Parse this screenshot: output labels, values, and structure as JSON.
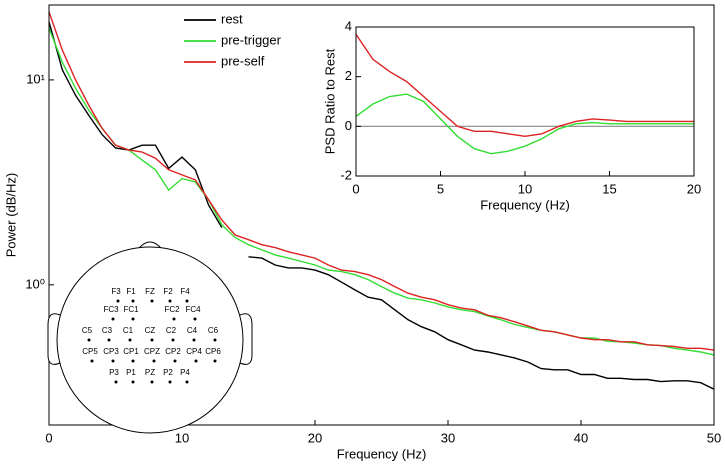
{
  "chart_data": [
    {
      "type": "line",
      "xlabel": "Frequency (Hz)",
      "ylabel": "Power (dB/Hz)",
      "log_y": true,
      "legend": "top-left",
      "x": [
        0,
        1,
        2,
        3,
        4,
        5,
        6,
        7,
        8,
        9,
        10,
        11,
        12,
        13,
        14,
        15,
        16,
        17,
        18,
        19,
        20,
        21,
        22,
        23,
        24,
        25,
        26,
        27,
        28,
        29,
        30,
        31,
        32,
        33,
        34,
        35,
        36,
        37,
        38,
        39,
        40,
        41,
        42,
        43,
        44,
        45,
        46,
        47,
        48,
        49,
        50
      ],
      "xlim": [
        0,
        50
      ],
      "xticks": [
        0,
        10,
        20,
        30,
        40,
        50
      ],
      "ylim": [
        0.207,
        23.2
      ],
      "yticks": [
        {
          "value": 1,
          "label": "10⁰"
        },
        {
          "value": 10,
          "label": "10¹"
        }
      ],
      "series": [
        {
          "name": "rest",
          "color": "#000000",
          "values": [
            19.2,
            11.2,
            8.4,
            6.7,
            5.4,
            4.65,
            4.55,
            4.8,
            4.8,
            3.7,
            4.2,
            3.64,
            2.45,
            1.9,
            null,
            1.37,
            1.35,
            1.25,
            1.21,
            1.21,
            1.18,
            1.12,
            1.03,
            0.945,
            0.87,
            0.845,
            0.755,
            0.675,
            0.625,
            0.59,
            0.54,
            0.51,
            0.48,
            0.47,
            0.455,
            0.44,
            0.42,
            0.39,
            0.385,
            0.385,
            0.365,
            0.365,
            0.35,
            0.35,
            0.345,
            0.345,
            0.337,
            0.34,
            0.34,
            0.333,
            0.31
          ]
        },
        {
          "name": "pre-trigger",
          "color": "#33dd33",
          "values": [
            17.9,
            12.2,
            9.1,
            7.1,
            5.8,
            4.8,
            4.55,
            4.06,
            3.64,
            2.9,
            3.3,
            3.18,
            2.6,
            1.96,
            1.7,
            1.57,
            1.48,
            1.4,
            1.35,
            1.3,
            1.25,
            1.18,
            1.16,
            1.12,
            1.06,
            0.98,
            0.91,
            0.86,
            0.845,
            0.815,
            0.78,
            0.755,
            0.74,
            0.705,
            0.675,
            0.64,
            0.62,
            0.6,
            0.59,
            0.57,
            0.55,
            0.55,
            0.53,
            0.527,
            0.52,
            0.51,
            0.505,
            0.49,
            0.48,
            0.47,
            0.455
          ]
        },
        {
          "name": "pre-self",
          "color": "#dd2222",
          "values": [
            21.5,
            14,
            10,
            7.5,
            5.8,
            4.8,
            4.55,
            4.45,
            4.15,
            3.64,
            3.44,
            3.25,
            2.6,
            2.07,
            1.75,
            1.66,
            1.57,
            1.52,
            1.45,
            1.4,
            1.35,
            1.25,
            1.18,
            1.16,
            1.12,
            1.06,
            0.98,
            0.91,
            0.87,
            0.845,
            0.8,
            0.77,
            0.755,
            0.71,
            0.69,
            0.66,
            0.63,
            0.6,
            0.59,
            0.57,
            0.55,
            0.54,
            0.54,
            0.527,
            0.527,
            0.51,
            0.505,
            0.5,
            0.49,
            0.49,
            0.48
          ]
        }
      ]
    },
    {
      "type": "line",
      "xlabel": "Frequency (Hz)",
      "ylabel": "PSD Ratio to Rest",
      "reference_line": 0,
      "x": [
        0,
        1,
        2,
        3,
        4,
        5,
        6,
        7,
        8,
        9,
        10,
        11,
        12,
        13,
        14,
        15,
        16,
        17,
        18,
        19,
        20
      ],
      "xlim": [
        0,
        20
      ],
      "xticks": [
        0,
        5,
        10,
        15,
        20
      ],
      "ylim": [
        -2,
        4
      ],
      "yticks": [
        -2,
        0,
        2,
        4
      ],
      "series": [
        {
          "color": "#33dd33",
          "values": [
            0.4,
            0.9,
            1.2,
            1.3,
            1.0,
            0.3,
            -0.4,
            -0.9,
            -1.1,
            -1.0,
            -0.8,
            -0.5,
            -0.1,
            0.1,
            0.15,
            0.1,
            0.1,
            0.1,
            0.1,
            0.1,
            0.1
          ]
        },
        {
          "color": "#dd2222",
          "values": [
            3.7,
            2.7,
            2.2,
            1.8,
            1.2,
            0.6,
            0.0,
            -0.2,
            -0.2,
            -0.3,
            -0.4,
            -0.3,
            0.0,
            0.2,
            0.3,
            0.25,
            0.2,
            0.2,
            0.2,
            0.2,
            0.2
          ]
        }
      ]
    }
  ],
  "electrodes": [
    [
      "F3",
      "F1",
      "FZ",
      "F2",
      "F4"
    ],
    [
      "FC3",
      "FC1",
      "FC2",
      "FC4"
    ],
    [
      "C5",
      "C3",
      "C1",
      "CZ",
      "C2",
      "C4",
      "C6"
    ],
    [
      "CP5",
      "CP3",
      "CP1",
      "CPZ",
      "CP2",
      "CP4",
      "CP6"
    ],
    [
      "P3",
      "P1",
      "PZ",
      "P2",
      "P4"
    ]
  ]
}
